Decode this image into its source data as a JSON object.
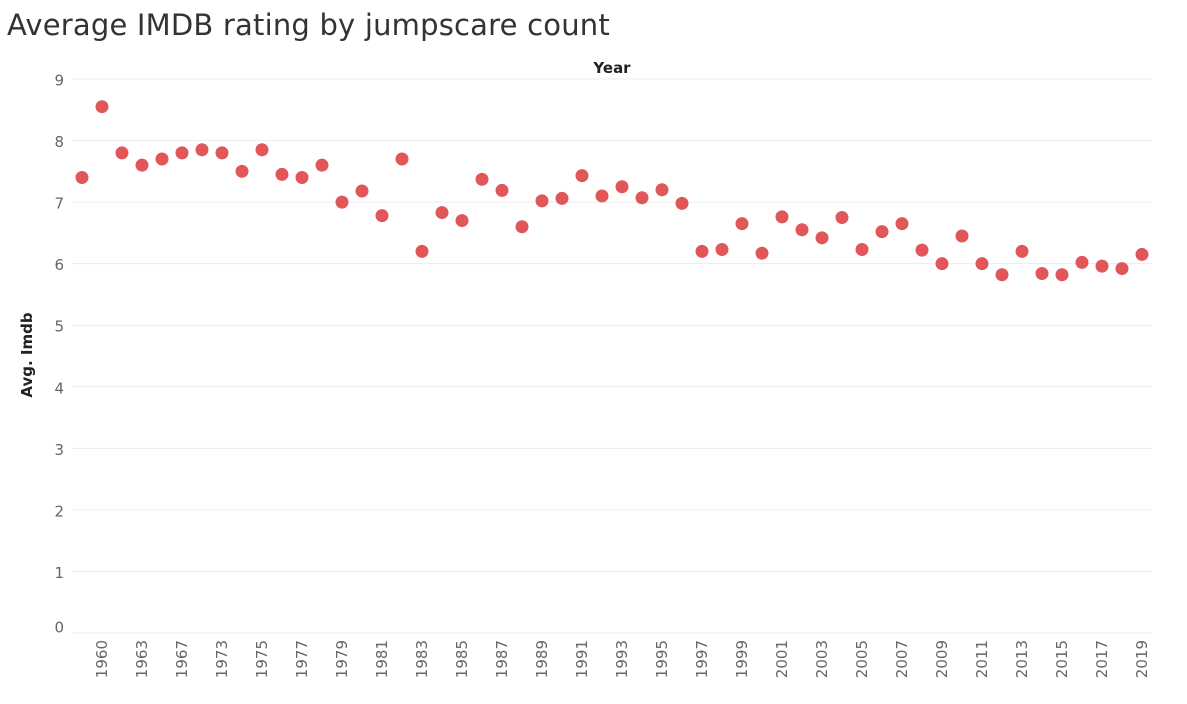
{
  "chart_data": {
    "type": "scatter",
    "title": "Average IMDB rating by jumpscare count",
    "xlabel": "Year",
    "ylabel": "Avg. Imdb",
    "ylim": [
      0,
      9
    ],
    "yticks": [
      0,
      1,
      2,
      3,
      4,
      5,
      6,
      7,
      8,
      9
    ],
    "grid": true,
    "marker_color": "#e15759",
    "x_tick_labels": [
      "1960",
      "1963",
      "1967",
      "1973",
      "1975",
      "1977",
      "1979",
      "1981",
      "1983",
      "1985",
      "1987",
      "1989",
      "1991",
      "1993",
      "1995",
      "1997",
      "1999",
      "2001",
      "2003",
      "2005",
      "2007",
      "2009",
      "2011",
      "2013",
      "2015",
      "2017",
      "2019"
    ],
    "x": [
      "1959",
      "1960",
      "1961",
      "1963",
      "1965",
      "1967",
      "1970",
      "1973",
      "1974",
      "1975",
      "1976",
      "1977",
      "1978",
      "1979",
      "1980",
      "1981",
      "1982",
      "1983",
      "1984",
      "1985",
      "1986",
      "1987",
      "1988",
      "1989",
      "1990",
      "1991",
      "1992",
      "1993",
      "1994",
      "1995",
      "1996",
      "1997",
      "1998",
      "1999",
      "2000",
      "2001",
      "2002",
      "2003",
      "2004",
      "2005",
      "2006",
      "2007",
      "2008",
      "2009",
      "2010",
      "2011",
      "2012",
      "2013",
      "2014",
      "2015",
      "2016",
      "2017",
      "2018",
      "2019"
    ],
    "values": [
      7.4,
      8.55,
      7.8,
      7.6,
      7.7,
      7.8,
      7.85,
      7.8,
      7.5,
      7.85,
      7.45,
      7.4,
      7.6,
      7.0,
      7.18,
      6.78,
      7.7,
      6.2,
      6.83,
      6.7,
      7.37,
      7.19,
      6.6,
      7.02,
      7.06,
      7.43,
      7.1,
      7.25,
      7.07,
      7.2,
      6.98,
      6.2,
      6.23,
      6.65,
      6.17,
      6.76,
      6.55,
      6.42,
      6.75,
      6.23,
      6.52,
      6.65,
      6.22,
      6.0,
      6.45,
      6.0,
      5.82,
      6.2,
      5.84,
      5.82,
      6.02,
      5.96,
      5.92,
      6.15
    ]
  }
}
